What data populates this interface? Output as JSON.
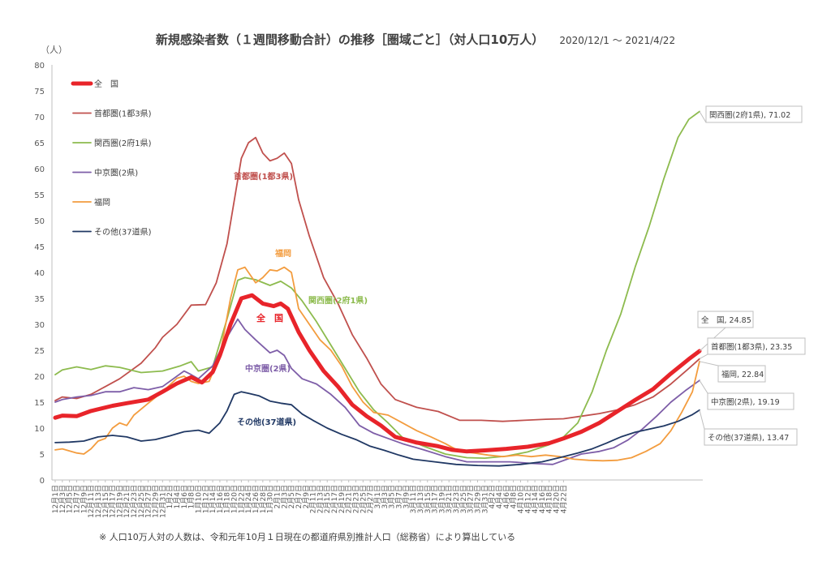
{
  "title": "新規感染者数（１週間移動合計）の推移［圏域ごと］（対人口10万人）",
  "period": "2020/12/1 〜 2021/4/22",
  "footnote": "※ 人口10万人対の人数は、令和元年10月１日現在の都道府県別推計人口（総務省）により算出している",
  "chart_data": {
    "type": "line",
    "title": "新規感染者数（１週間移動合計）の推移［圏域ごと］（対人口10万人）",
    "subtitle": "2020/12/1 〜 2021/4/22",
    "ylabel": "（人）",
    "xlabel": "",
    "ylim": [
      0,
      80
    ],
    "ytick_step": 5,
    "grid": false,
    "legend": "top-left",
    "x_start": "2020-12-01",
    "x_end": "2021-04-22",
    "x_tick_every_days": 2,
    "x_tick_labels": [
      "12月1日",
      "12月3日",
      "12月5日",
      "12月7日",
      "12月9日",
      "12月11日",
      "12月13日",
      "12月15日",
      "12月17日",
      "12月19日",
      "12月21日",
      "12月23日",
      "12月25日",
      "12月27日",
      "12月29日",
      "12月31日",
      "1月2日",
      "1月4日",
      "1月6日",
      "1月8日",
      "1月10日",
      "1月12日",
      "1月14日",
      "1月16日",
      "1月18日",
      "1月20日",
      "1月22日",
      "1月24日",
      "1月26日",
      "1月28日",
      "1月30日",
      "2月1日",
      "2月3日",
      "2月5日",
      "2月7日",
      "2月9日",
      "2月11日",
      "2月13日",
      "2月15日",
      "2月17日",
      "2月19日",
      "2月21日",
      "2月23日",
      "2月25日",
      "2月27日",
      "3月1日",
      "3月3日",
      "3月5日",
      "3月7日",
      "3月9日",
      "3月11日",
      "3月13日",
      "3月15日",
      "3月17日",
      "3月19日",
      "3月21日",
      "3月23日",
      "3月25日",
      "3月27日",
      "3月29日",
      "3月31日",
      "4月2日",
      "4月4日",
      "4月6日",
      "4月8日",
      "4月10日",
      "4月12日",
      "4月14日",
      "4月16日",
      "4月18日",
      "4月20日",
      "4月22日"
    ],
    "series": [
      {
        "name": "全　国",
        "color": "#e8242a",
        "width": 5,
        "points": [
          [
            0,
            12
          ],
          [
            2,
            12.4
          ],
          [
            6,
            12.3
          ],
          [
            10,
            13.3
          ],
          [
            16,
            14.3
          ],
          [
            20,
            14.8
          ],
          [
            26,
            15.5
          ],
          [
            30,
            17
          ],
          [
            34,
            18.6
          ],
          [
            38,
            19.8
          ],
          [
            41,
            18.8
          ],
          [
            44,
            20.8
          ],
          [
            46,
            24
          ],
          [
            49,
            30
          ],
          [
            52,
            35
          ],
          [
            55,
            35.6
          ],
          [
            58,
            34
          ],
          [
            61,
            33.5
          ],
          [
            63,
            34
          ],
          [
            65,
            33
          ],
          [
            68,
            28.5
          ],
          [
            71,
            25
          ],
          [
            75,
            21
          ],
          [
            79,
            18
          ],
          [
            83,
            14.5
          ],
          [
            87,
            12.3
          ],
          [
            91,
            10.5
          ],
          [
            95,
            8.3
          ],
          [
            101,
            7.2
          ],
          [
            107,
            6.5
          ],
          [
            111,
            5.8
          ],
          [
            115,
            5.5
          ],
          [
            120,
            5.7
          ],
          [
            126,
            6
          ],
          [
            132,
            6.4
          ],
          [
            138,
            7.1
          ],
          [
            142,
            8
          ],
          [
            147,
            9.3
          ],
          [
            152,
            11
          ],
          [
            157,
            13.2
          ],
          [
            162,
            15.4
          ],
          [
            167,
            17.5
          ],
          [
            172,
            20.5
          ],
          [
            177,
            23.3
          ],
          [
            180,
            24.85
          ]
        ],
        "end_value": 24.85,
        "end_label": "全　国, 24.85",
        "inline_label": "全　国"
      },
      {
        "name": "首都圏(1都3県)",
        "color": "#c0504d",
        "width": 1.8,
        "points": [
          [
            0,
            15.3
          ],
          [
            2,
            16
          ],
          [
            6,
            15.7
          ],
          [
            10,
            16.5
          ],
          [
            14,
            18
          ],
          [
            18,
            19.5
          ],
          [
            24,
            22.5
          ],
          [
            28,
            25.5
          ],
          [
            30,
            27.5
          ],
          [
            34,
            30
          ],
          [
            38,
            33.7
          ],
          [
            42,
            33.8
          ],
          [
            45,
            38
          ],
          [
            48,
            45.5
          ],
          [
            52,
            62
          ],
          [
            54,
            65
          ],
          [
            56,
            66
          ],
          [
            58,
            63
          ],
          [
            60,
            61.5
          ],
          [
            62,
            62
          ],
          [
            64,
            63
          ],
          [
            66,
            61
          ],
          [
            68,
            54
          ],
          [
            71,
            47
          ],
          [
            75,
            39
          ],
          [
            79,
            34
          ],
          [
            83,
            28
          ],
          [
            87,
            23.5
          ],
          [
            91,
            18.5
          ],
          [
            95,
            15.5
          ],
          [
            101,
            14
          ],
          [
            107,
            13.2
          ],
          [
            113,
            11.5
          ],
          [
            119,
            11.5
          ],
          [
            125,
            11.3
          ],
          [
            131,
            11.5
          ],
          [
            137,
            11.7
          ],
          [
            142,
            11.8
          ],
          [
            147,
            12.3
          ],
          [
            152,
            12.8
          ],
          [
            157,
            13.5
          ],
          [
            162,
            14.5
          ],
          [
            167,
            16
          ],
          [
            172,
            18.5
          ],
          [
            177,
            21.5
          ],
          [
            180,
            23.35
          ]
        ],
        "end_value": 23.35,
        "end_label": "首都圏(1都3県), 23.35",
        "inline_label": "首都圏(1都3県)"
      },
      {
        "name": "関西圏(2府1県)",
        "color": "#8dbb4e",
        "width": 1.8,
        "points": [
          [
            0,
            20.3
          ],
          [
            2,
            21.2
          ],
          [
            6,
            21.8
          ],
          [
            10,
            21.3
          ],
          [
            14,
            22
          ],
          [
            18,
            21.7
          ],
          [
            24,
            20.7
          ],
          [
            30,
            21
          ],
          [
            35,
            22
          ],
          [
            38,
            22.8
          ],
          [
            40,
            21
          ],
          [
            44,
            21.8
          ],
          [
            48,
            31
          ],
          [
            51,
            38.5
          ],
          [
            53,
            39
          ],
          [
            56,
            38.6
          ],
          [
            60,
            37.5
          ],
          [
            63,
            38.3
          ],
          [
            66,
            37
          ],
          [
            69,
            34.5
          ],
          [
            73,
            30.5
          ],
          [
            77,
            26
          ],
          [
            81,
            21.5
          ],
          [
            85,
            17
          ],
          [
            89,
            13.5
          ],
          [
            93,
            11
          ],
          [
            97,
            8.2
          ],
          [
            103,
            6.5
          ],
          [
            109,
            5
          ],
          [
            115,
            4.3
          ],
          [
            120,
            4.2
          ],
          [
            126,
            4.6
          ],
          [
            132,
            5.4
          ],
          [
            138,
            6.8
          ],
          [
            142,
            8.3
          ],
          [
            146,
            11
          ],
          [
            150,
            17
          ],
          [
            154,
            25
          ],
          [
            158,
            32
          ],
          [
            162,
            41
          ],
          [
            166,
            49
          ],
          [
            170,
            58
          ],
          [
            174,
            66
          ],
          [
            177,
            69.5
          ],
          [
            180,
            71.02
          ]
        ],
        "end_value": 71.02,
        "end_label": "関西圏(2府1県), 71.02",
        "inline_label": "関西圏(2府1県)"
      },
      {
        "name": "中京圏(2県)",
        "color": "#7e5ea8",
        "width": 1.8,
        "points": [
          [
            0,
            15
          ],
          [
            2,
            15.5
          ],
          [
            6,
            16
          ],
          [
            10,
            16.3
          ],
          [
            14,
            17
          ],
          [
            18,
            17
          ],
          [
            22,
            17.8
          ],
          [
            26,
            17.4
          ],
          [
            30,
            18
          ],
          [
            34,
            20
          ],
          [
            36,
            21
          ],
          [
            38,
            20.3
          ],
          [
            40,
            19.5
          ],
          [
            44,
            22
          ],
          [
            48,
            27.5
          ],
          [
            51,
            31
          ],
          [
            53,
            29
          ],
          [
            56,
            27
          ],
          [
            60,
            24.5
          ],
          [
            62,
            25
          ],
          [
            64,
            24
          ],
          [
            66,
            21.5
          ],
          [
            69,
            19.5
          ],
          [
            73,
            18.5
          ],
          [
            77,
            16.5
          ],
          [
            81,
            14
          ],
          [
            85,
            10.5
          ],
          [
            89,
            9
          ],
          [
            93,
            8
          ],
          [
            97,
            7
          ],
          [
            103,
            5.8
          ],
          [
            109,
            4.5
          ],
          [
            115,
            3.5
          ],
          [
            121,
            3.5
          ],
          [
            127,
            3.5
          ],
          [
            133,
            3.2
          ],
          [
            139,
            3
          ],
          [
            143,
            4
          ],
          [
            147,
            5
          ],
          [
            152,
            5.5
          ],
          [
            156,
            6.2
          ],
          [
            160,
            7.7
          ],
          [
            164,
            9.8
          ],
          [
            168,
            12.3
          ],
          [
            172,
            15
          ],
          [
            176,
            17.2
          ],
          [
            180,
            19.19
          ]
        ],
        "end_value": 19.19,
        "end_label": "中京圏(2県), 19.19",
        "inline_label": "中京圏(2県)"
      },
      {
        "name": "福岡",
        "color": "#f39c3e",
        "width": 1.8,
        "points": [
          [
            0,
            5.8
          ],
          [
            2,
            6
          ],
          [
            6,
            5.2
          ],
          [
            8,
            5
          ],
          [
            10,
            6
          ],
          [
            12,
            7.5
          ],
          [
            14,
            8
          ],
          [
            16,
            10
          ],
          [
            18,
            11
          ],
          [
            20,
            10.5
          ],
          [
            22,
            12.5
          ],
          [
            26,
            14.8
          ],
          [
            30,
            17
          ],
          [
            34,
            19.6
          ],
          [
            36,
            20
          ],
          [
            38,
            19
          ],
          [
            40,
            18.6
          ],
          [
            43,
            19
          ],
          [
            46,
            24
          ],
          [
            49,
            35
          ],
          [
            51,
            40.5
          ],
          [
            53,
            41
          ],
          [
            56,
            38
          ],
          [
            58,
            39
          ],
          [
            60,
            40.5
          ],
          [
            62,
            40.3
          ],
          [
            64,
            41
          ],
          [
            66,
            40
          ],
          [
            68,
            33
          ],
          [
            71,
            30
          ],
          [
            74,
            27
          ],
          [
            77,
            25
          ],
          [
            80,
            22
          ],
          [
            83,
            18
          ],
          [
            86,
            15
          ],
          [
            89,
            13
          ],
          [
            93,
            12.5
          ],
          [
            97,
            11
          ],
          [
            101,
            9.5
          ],
          [
            105,
            8.3
          ],
          [
            109,
            7
          ],
          [
            113,
            5.5
          ],
          [
            117,
            5.2
          ],
          [
            121,
            4.8
          ],
          [
            125,
            4.5
          ],
          [
            129,
            4.8
          ],
          [
            133,
            4.5
          ],
          [
            137,
            4.8
          ],
          [
            141,
            4.5
          ],
          [
            145,
            4
          ],
          [
            149,
            3.8
          ],
          [
            153,
            3.7
          ],
          [
            157,
            3.8
          ],
          [
            161,
            4.3
          ],
          [
            165,
            5.5
          ],
          [
            169,
            7
          ],
          [
            172,
            9.5
          ],
          [
            175,
            13
          ],
          [
            178,
            17
          ],
          [
            180,
            22.84
          ]
        ],
        "end_value": 22.84,
        "end_label": "福岡, 22.84",
        "inline_label": "福岡"
      },
      {
        "name": "その他(37道県)",
        "color": "#203864",
        "width": 1.8,
        "points": [
          [
            0,
            7.2
          ],
          [
            4,
            7.3
          ],
          [
            8,
            7.5
          ],
          [
            12,
            8.3
          ],
          [
            16,
            8.6
          ],
          [
            20,
            8.3
          ],
          [
            24,
            7.5
          ],
          [
            28,
            7.8
          ],
          [
            32,
            8.5
          ],
          [
            36,
            9.3
          ],
          [
            40,
            9.6
          ],
          [
            43,
            9
          ],
          [
            46,
            11
          ],
          [
            48,
            13.3
          ],
          [
            50,
            16.5
          ],
          [
            52,
            17
          ],
          [
            54,
            16.7
          ],
          [
            57,
            16.2
          ],
          [
            60,
            15.2
          ],
          [
            63,
            14.8
          ],
          [
            66,
            14.5
          ],
          [
            69,
            12.7
          ],
          [
            72,
            11.5
          ],
          [
            76,
            10
          ],
          [
            80,
            8.8
          ],
          [
            84,
            7.8
          ],
          [
            88,
            6.5
          ],
          [
            92,
            5.7
          ],
          [
            96,
            4.8
          ],
          [
            100,
            4
          ],
          [
            106,
            3.5
          ],
          [
            112,
            3
          ],
          [
            118,
            2.8
          ],
          [
            124,
            2.7
          ],
          [
            130,
            3
          ],
          [
            136,
            3.5
          ],
          [
            142,
            4.5
          ],
          [
            146,
            5.2
          ],
          [
            150,
            6
          ],
          [
            154,
            7.1
          ],
          [
            158,
            8.3
          ],
          [
            162,
            9.2
          ],
          [
            166,
            9.8
          ],
          [
            170,
            10.4
          ],
          [
            174,
            11.3
          ],
          [
            178,
            12.6
          ],
          [
            180,
            13.47
          ]
        ],
        "end_value": 13.47,
        "end_label": "その他(37道県), 13.47",
        "inline_label": "その他(37道県)"
      }
    ]
  }
}
